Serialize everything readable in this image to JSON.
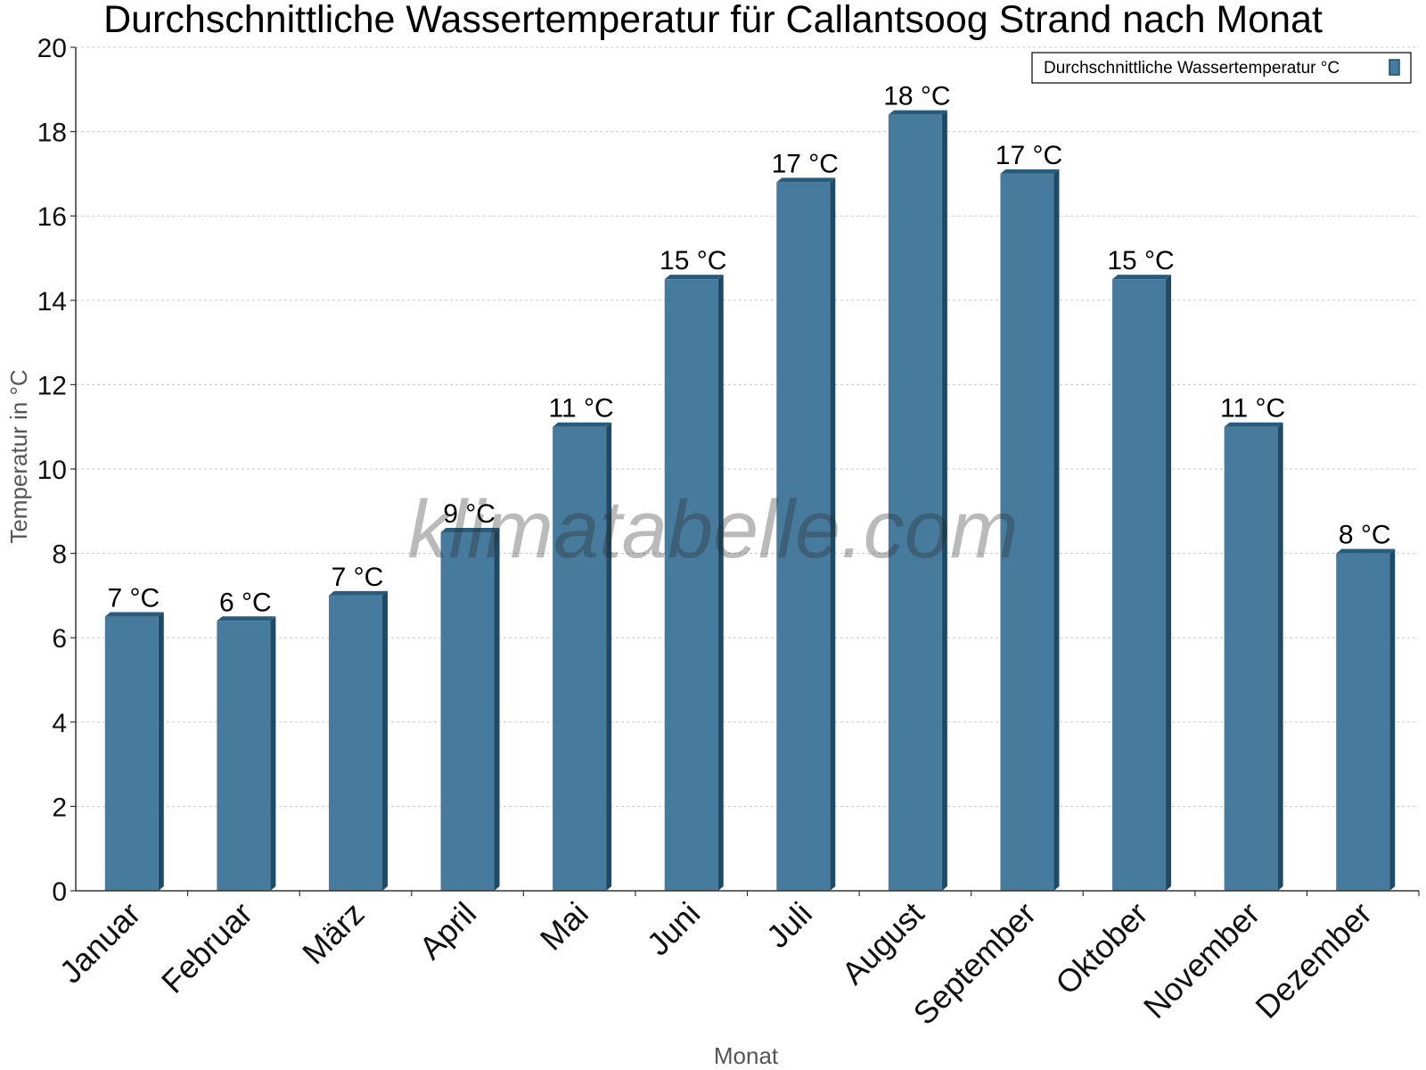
{
  "colors": {
    "bar_front": "#477b9d",
    "bar_side": "#1f4a66",
    "bar_top": "#2b5b7b",
    "grid": "#c8c8c8",
    "axis": "#333333"
  },
  "watermark": "klimatabelle.com",
  "chart_data": {
    "type": "bar",
    "title": "Durchschnittliche Wassertemperatur für Callantsoog Strand nach Monat",
    "xlabel": "Monat",
    "ylabel": "Temperatur in °C",
    "ylim": [
      0,
      20
    ],
    "yticks": [
      0,
      2,
      4,
      6,
      8,
      10,
      12,
      14,
      16,
      18,
      20
    ],
    "grid": true,
    "legend_position": "top-right",
    "categories": [
      "Januar",
      "Februar",
      "März",
      "April",
      "Mai",
      "Juni",
      "Juli",
      "August",
      "September",
      "Oktober",
      "November",
      "Dezember"
    ],
    "series": [
      {
        "name": "Durchschnittliche Wassertemperatur °C",
        "values": [
          6.5,
          6.4,
          7.0,
          8.5,
          11.0,
          14.5,
          16.8,
          18.4,
          17.0,
          14.5,
          11.0,
          8.0
        ],
        "labels": [
          "7 °C",
          "6 °C",
          "7 °C",
          "9 °C",
          "11 °C",
          "15 °C",
          "17 °C",
          "18 °C",
          "17 °C",
          "15 °C",
          "11 °C",
          "8 °C"
        ]
      }
    ]
  }
}
